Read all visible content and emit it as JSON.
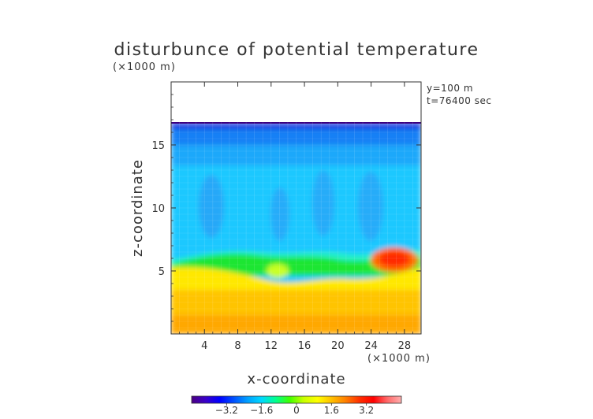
{
  "chart_data": {
    "type": "heatmap",
    "title": "disturbunce of potential temperature",
    "y_unit": "(×1000 m)",
    "x_unit": "(×1000 m)",
    "xlabel": "x-coordinate",
    "ylabel": "z-coordinate",
    "annotations": [
      "y=100 m",
      "t=76400 sec"
    ],
    "xlim": [
      0,
      30
    ],
    "ylim": [
      0,
      20
    ],
    "x_ticks": [
      4,
      8,
      12,
      16,
      20,
      24,
      28
    ],
    "y_ticks": [
      5,
      10,
      15
    ],
    "data_top_z": 17,
    "colorbar": {
      "ticks": [
        -3.2,
        -1.6,
        0,
        1.6,
        3.2
      ],
      "tick_labels": [
        "−3.2",
        "−1.6",
        "0",
        "1.6",
        "3.2"
      ],
      "range": [
        -4.8,
        4.8
      ],
      "colors": [
        "#4b0082",
        "#3a00c8",
        "#0000ff",
        "#0050ff",
        "#00a0ff",
        "#00d8ff",
        "#00ff90",
        "#40ff00",
        "#c8ff00",
        "#ffff00",
        "#ffc000",
        "#ff8000",
        "#ff3000",
        "#ff0000",
        "#ff6a6a",
        "#ffb0b0"
      ]
    },
    "grid": true
  }
}
